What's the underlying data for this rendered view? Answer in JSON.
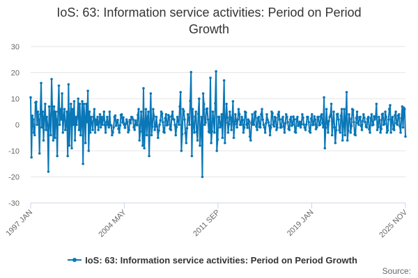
{
  "chart_data": {
    "type": "line",
    "title": "IoS: 63: Information service activities: Period on Period Growth",
    "xlabel": "",
    "ylabel": "",
    "ylim": [
      -30,
      30
    ],
    "yticks": [
      30,
      20,
      10,
      0,
      -10,
      -20,
      -30
    ],
    "x_range": [
      "1997 JAN",
      "2025 NOV"
    ],
    "xticks": [
      "1997 JAN",
      "2004 MAY",
      "2011 SEP",
      "2019 JAN",
      "2025 NOV"
    ],
    "grid": true,
    "legend_position": "bottom",
    "series": [
      {
        "name": "IoS: 63: Information service activities: Period on Period Growth",
        "color": "#0a77b7",
        "keypoints": [
          [
            0,
            10.5
          ],
          [
            1,
            -12.5
          ],
          [
            2,
            3.5
          ],
          [
            3,
            2
          ],
          [
            4,
            -3
          ],
          [
            5,
            -4
          ],
          [
            6,
            8.5
          ],
          [
            7,
            8.8
          ],
          [
            8,
            0
          ],
          [
            9,
            5
          ],
          [
            10,
            2
          ],
          [
            11,
            -11
          ],
          [
            12,
            4
          ],
          [
            13,
            16
          ],
          [
            14,
            -1
          ],
          [
            15,
            5
          ],
          [
            16,
            -6
          ],
          [
            17,
            3
          ],
          [
            18,
            8
          ],
          [
            19,
            -2
          ],
          [
            20,
            3
          ],
          [
            21,
            0
          ],
          [
            22,
            -18
          ],
          [
            23,
            7
          ],
          [
            24,
            2
          ],
          [
            25,
            -4
          ],
          [
            26,
            17.5
          ],
          [
            27,
            5
          ],
          [
            28,
            -6
          ],
          [
            29,
            7
          ],
          [
            30,
            -5
          ],
          [
            31,
            5
          ],
          [
            32,
            2
          ],
          [
            33,
            -12
          ],
          [
            34,
            5
          ],
          [
            35,
            15
          ],
          [
            36,
            0
          ],
          [
            37,
            6
          ],
          [
            38,
            2
          ],
          [
            39,
            12
          ],
          [
            40,
            -3
          ],
          [
            41,
            3
          ],
          [
            42,
            6
          ],
          [
            43,
            -2
          ],
          [
            44,
            0
          ],
          [
            45,
            5
          ],
          [
            46,
            -12
          ],
          [
            47,
            15.5
          ],
          [
            48,
            -8
          ],
          [
            49,
            3
          ],
          [
            50,
            8
          ],
          [
            51,
            -9
          ],
          [
            52,
            6
          ],
          [
            53,
            0
          ],
          [
            54,
            9
          ],
          [
            55,
            -6
          ],
          [
            56,
            3
          ],
          [
            57,
            0
          ],
          [
            58,
            3
          ],
          [
            59,
            10
          ],
          [
            60,
            -2
          ],
          [
            61,
            8
          ],
          [
            62,
            -4
          ],
          [
            63,
            1
          ],
          [
            64,
            9
          ],
          [
            65,
            -15
          ],
          [
            66,
            8
          ],
          [
            67,
            3
          ],
          [
            68,
            -7
          ],
          [
            69,
            8
          ],
          [
            70,
            1
          ],
          [
            71,
            13
          ],
          [
            72,
            -10
          ],
          [
            73,
            5
          ],
          [
            74,
            -3
          ],
          [
            75,
            3
          ],
          [
            76,
            1
          ],
          [
            77,
            -2
          ],
          [
            78,
            3
          ],
          [
            79,
            6
          ],
          [
            80,
            -3
          ],
          [
            81,
            2
          ],
          [
            82,
            0
          ],
          [
            83,
            3
          ],
          [
            84,
            -2
          ],
          [
            85,
            1
          ],
          [
            86,
            4
          ],
          [
            87,
            -1
          ],
          [
            88,
            3
          ],
          [
            89,
            0
          ],
          [
            90,
            2
          ],
          [
            91,
            5
          ],
          [
            92,
            0
          ],
          [
            93,
            -3
          ],
          [
            94,
            1
          ],
          [
            95,
            3
          ],
          [
            96,
            0
          ],
          [
            97,
            -1
          ]
        ],
        "segments": [
          [
            98,
            5
          ],
          [
            101,
            -4
          ],
          [
            104,
            3
          ],
          [
            107,
            1
          ],
          [
            110,
            -3
          ],
          [
            113,
            4
          ],
          [
            116,
            0
          ],
          [
            119,
            2
          ],
          [
            122,
            -2
          ],
          [
            125,
            3
          ],
          [
            128,
            -1
          ],
          [
            131,
            0
          ],
          [
            134,
            6
          ],
          [
            135,
            -6
          ],
          [
            137,
            5
          ],
          [
            139,
            -8
          ],
          [
            140,
            14
          ],
          [
            141,
            -9
          ],
          [
            143,
            6
          ],
          [
            144,
            -4
          ],
          [
            146,
            5
          ],
          [
            147,
            -12
          ],
          [
            149,
            12
          ],
          [
            150,
            -4
          ],
          [
            152,
            6
          ],
          [
            154,
            -2
          ],
          [
            156,
            3
          ],
          [
            158,
            -5
          ],
          [
            160,
            0
          ],
          [
            162,
            5
          ],
          [
            164,
            1
          ],
          [
            166,
            -3
          ],
          [
            168,
            4
          ],
          [
            170,
            0
          ],
          [
            172,
            3
          ],
          [
            174,
            -2
          ],
          [
            176,
            5
          ],
          [
            178,
            2
          ],
          [
            180,
            -4
          ],
          [
            182,
            3
          ],
          [
            184,
            0
          ],
          [
            186,
            12.5
          ],
          [
            187,
            -10
          ],
          [
            189,
            6
          ],
          [
            191,
            2
          ],
          [
            193,
            -7
          ],
          [
            195,
            4
          ],
          [
            197,
            0
          ],
          [
            199,
            20.2
          ],
          [
            200,
            -12
          ],
          [
            201,
            6
          ],
          [
            203,
            -3
          ],
          [
            205,
            5
          ],
          [
            207,
            -6
          ],
          [
            209,
            10
          ],
          [
            210,
            -8
          ],
          [
            212,
            3
          ],
          [
            213,
            -20
          ],
          [
            214,
            12
          ],
          [
            216,
            0
          ],
          [
            218,
            6
          ],
          [
            220,
            2
          ],
          [
            222,
            -3
          ],
          [
            223,
            18
          ],
          [
            224,
            -7
          ],
          [
            226,
            5
          ],
          [
            228,
            -3
          ],
          [
            230,
            20.5
          ],
          [
            231,
            -10
          ],
          [
            233,
            3
          ],
          [
            235,
            -1
          ],
          [
            237,
            4
          ],
          [
            238,
            -5
          ],
          [
            240,
            17
          ],
          [
            241,
            -7
          ],
          [
            243,
            8
          ],
          [
            245,
            -3
          ],
          [
            247,
            5
          ],
          [
            249,
            -2
          ],
          [
            251,
            9
          ],
          [
            252,
            -5
          ],
          [
            254,
            4
          ],
          [
            256,
            -1
          ],
          [
            258,
            6
          ],
          [
            260,
            0
          ],
          [
            262,
            3
          ],
          [
            264,
            -3
          ],
          [
            266,
            5
          ],
          [
            268,
            0
          ]
        ],
        "tail": [
          [
            270,
            2
          ],
          [
            273,
            -6
          ],
          [
            275,
            4
          ],
          [
            277,
            0
          ],
          [
            279,
            5
          ],
          [
            281,
            -2
          ],
          [
            283,
            3
          ],
          [
            285,
            -1
          ],
          [
            287,
            6
          ],
          [
            289,
            0
          ],
          [
            291,
            -3
          ],
          [
            293,
            4
          ],
          [
            295,
            1
          ],
          [
            297,
            -4
          ],
          [
            299,
            5
          ],
          [
            301,
            0
          ],
          [
            303,
            3
          ],
          [
            305,
            -2
          ],
          [
            307,
            4
          ],
          [
            309,
            2
          ],
          [
            311,
            -1
          ],
          [
            313,
            3
          ],
          [
            315,
            -3
          ],
          [
            317,
            4
          ],
          [
            319,
            1
          ],
          [
            321,
            -2
          ],
          [
            323,
            3
          ],
          [
            325,
            0
          ],
          [
            327,
            2
          ],
          [
            329,
            -3
          ],
          [
            331,
            3
          ],
          [
            333,
            0
          ],
          [
            335,
            -1
          ],
          [
            337,
            4
          ],
          [
            339,
            0
          ],
          [
            341,
            -2
          ],
          [
            343,
            3
          ],
          [
            345,
            1
          ],
          [
            347,
            -3
          ],
          [
            349,
            4
          ],
          [
            351,
            0
          ],
          [
            353,
            2
          ],
          [
            355,
            -1
          ],
          [
            357,
            3
          ],
          [
            359,
            0
          ],
          [
            361,
            4
          ],
          [
            363,
            -1
          ],
          [
            364,
            10.5
          ],
          [
            365,
            -9
          ],
          [
            367,
            6
          ],
          [
            369,
            -3
          ],
          [
            371,
            3
          ],
          [
            373,
            8
          ],
          [
            374,
            -4
          ],
          [
            376,
            5
          ],
          [
            378,
            -7
          ],
          [
            380,
            4
          ],
          [
            382,
            2
          ],
          [
            384,
            -3
          ],
          [
            386,
            6
          ],
          [
            387,
            -6
          ],
          [
            389,
            6
          ],
          [
            390,
            -4
          ],
          [
            392,
            12.5
          ],
          [
            393,
            -6
          ],
          [
            395,
            4
          ],
          [
            397,
            -3
          ],
          [
            399,
            6
          ],
          [
            401,
            1
          ],
          [
            403,
            -4
          ],
          [
            405,
            5
          ],
          [
            407,
            0
          ],
          [
            409,
            3
          ],
          [
            411,
            -2
          ],
          [
            413,
            4
          ],
          [
            415,
            1
          ],
          [
            417,
            -1
          ],
          [
            419,
            3
          ],
          [
            421,
            -3
          ],
          [
            423,
            4
          ],
          [
            425,
            0
          ],
          [
            427,
            2
          ],
          [
            429,
            8
          ],
          [
            430,
            -2
          ],
          [
            432,
            3
          ],
          [
            434,
            -3
          ],
          [
            436,
            4
          ],
          [
            438,
            0
          ],
          [
            440,
            5
          ],
          [
            442,
            -3
          ],
          [
            444,
            2
          ],
          [
            446,
            7.5
          ],
          [
            447,
            -3
          ],
          [
            449,
            3
          ],
          [
            451,
            -2
          ],
          [
            453,
            5
          ],
          [
            455,
            0
          ],
          [
            457,
            4
          ],
          [
            459,
            -3
          ],
          [
            461,
            7
          ],
          [
            462,
            -1
          ],
          [
            463,
            6.5
          ],
          [
            464,
            6
          ],
          [
            465,
            -4.5
          ]
        ]
      }
    ]
  },
  "legend": {
    "label": "IoS: 63: Information service activities: Period on Period Growth"
  },
  "source": {
    "label": "Source:"
  }
}
